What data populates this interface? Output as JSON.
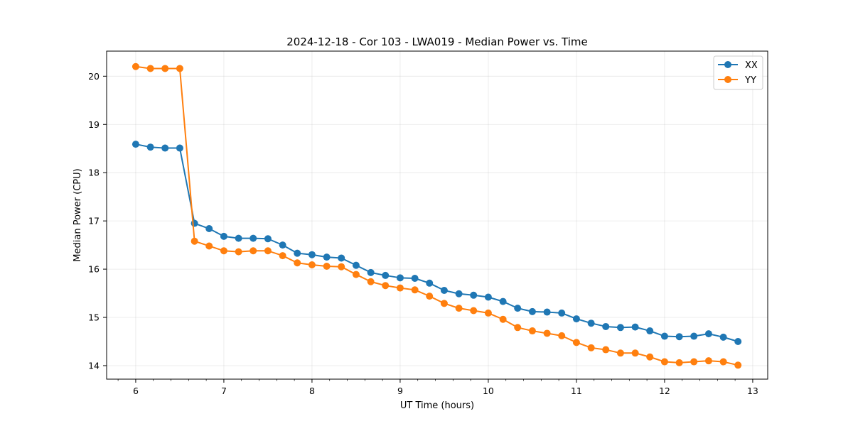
{
  "chart_data": {
    "type": "line",
    "title": "2024-12-18 - Cor 103 - LWA019 - Median Power vs. Time",
    "xlabel": "UT Time (hours)",
    "ylabel": "Median Power (CPU)",
    "xlim": [
      5.67,
      13.17
    ],
    "ylim": [
      13.72,
      20.52
    ],
    "xticks": [
      6,
      7,
      8,
      9,
      10,
      11,
      12,
      13
    ],
    "yticks": [
      14,
      15,
      16,
      17,
      18,
      19,
      20
    ],
    "grid": true,
    "legend_position": "top-right",
    "x": [
      6.0,
      6.167,
      6.333,
      6.5,
      6.667,
      6.833,
      7.0,
      7.167,
      7.333,
      7.5,
      7.667,
      7.833,
      8.0,
      8.167,
      8.333,
      8.5,
      8.667,
      8.833,
      9.0,
      9.167,
      9.333,
      9.5,
      9.667,
      9.833,
      10.0,
      10.167,
      10.333,
      10.5,
      10.667,
      10.833,
      11.0,
      11.167,
      11.333,
      11.5,
      11.667,
      11.833,
      12.0,
      12.167,
      12.333,
      12.5,
      12.667,
      12.833
    ],
    "series": [
      {
        "name": "XX",
        "color": "#1f77b4",
        "values": [
          18.59,
          18.53,
          18.51,
          18.51,
          16.95,
          16.84,
          16.68,
          16.64,
          16.64,
          16.63,
          16.5,
          16.33,
          16.3,
          16.25,
          16.23,
          16.08,
          15.93,
          15.87,
          15.82,
          15.81,
          15.71,
          15.56,
          15.49,
          15.46,
          15.42,
          15.33,
          15.19,
          15.12,
          15.11,
          15.09,
          14.97,
          14.88,
          14.81,
          14.79,
          14.8,
          14.72,
          14.61,
          14.6,
          14.61,
          14.66,
          14.59,
          14.5
        ]
      },
      {
        "name": "YY",
        "color": "#ff7f0e",
        "values": [
          20.2,
          20.16,
          20.16,
          20.16,
          16.58,
          16.48,
          16.38,
          16.36,
          16.38,
          16.38,
          16.28,
          16.13,
          16.09,
          16.06,
          16.05,
          15.89,
          15.74,
          15.66,
          15.61,
          15.57,
          15.44,
          15.29,
          15.19,
          15.14,
          15.09,
          14.96,
          14.79,
          14.72,
          14.67,
          14.62,
          14.48,
          14.37,
          14.33,
          14.26,
          14.26,
          14.18,
          14.08,
          14.06,
          14.08,
          14.1,
          14.08,
          14.01
        ]
      }
    ]
  }
}
